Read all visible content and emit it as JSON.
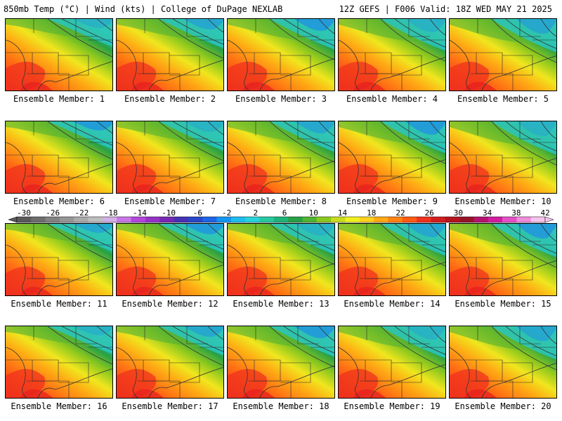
{
  "header": {
    "left_title": "850mb Temp (°C) | Wind (kts) | College of DuPage NEXLAB",
    "right_title": "12Z GEFS | F006 Valid: 18Z WED MAY 21 2025"
  },
  "members": [
    {
      "label": "Ensemble Member: 1"
    },
    {
      "label": "Ensemble Member: 2"
    },
    {
      "label": "Ensemble Member: 3"
    },
    {
      "label": "Ensemble Member: 4"
    },
    {
      "label": "Ensemble Member: 5"
    },
    {
      "label": "Ensemble Member: 6"
    },
    {
      "label": "Ensemble Member: 7"
    },
    {
      "label": "Ensemble Member: 8"
    },
    {
      "label": "Ensemble Member: 9"
    },
    {
      "label": "Ensemble Member: 10"
    },
    {
      "label": "Ensemble Member: 11"
    },
    {
      "label": "Ensemble Member: 12"
    },
    {
      "label": "Ensemble Member: 13"
    },
    {
      "label": "Ensemble Member: 14"
    },
    {
      "label": "Ensemble Member: 15"
    },
    {
      "label": "Ensemble Member: 16"
    },
    {
      "label": "Ensemble Member: 17"
    },
    {
      "label": "Ensemble Member: 18"
    },
    {
      "label": "Ensemble Member: 19"
    },
    {
      "label": "Ensemble Member: 20"
    }
  ],
  "colorbar": {
    "tick_labels": [
      "-30",
      "-26",
      "-22",
      "-18",
      "-14",
      "-10",
      "-6",
      "-2",
      "2",
      "6",
      "10",
      "14",
      "18",
      "22",
      "26",
      "30",
      "34",
      "38",
      "42"
    ],
    "colors": [
      "#5a5a5a",
      "#6e6e6e",
      "#828282",
      "#969696",
      "#aaaaaa",
      "#bebebe",
      "#d2aee6",
      "#c878e6",
      "#b446dc",
      "#9632c8",
      "#7828b4",
      "#4632b4",
      "#2846c8",
      "#1e64e6",
      "#1496f0",
      "#1ebef0",
      "#28d2dc",
      "#28c8a0",
      "#1eb478",
      "#28a046",
      "#50b432",
      "#8cc81e",
      "#c8dc1e",
      "#f0f01e",
      "#ffd21e",
      "#ffaa14",
      "#ff8214",
      "#ff5a14",
      "#f0321e",
      "#d21e1e",
      "#b4141e",
      "#961428",
      "#b4146e",
      "#d21ea0",
      "#e650c8",
      "#f08cdc",
      "#f5c3eb"
    ]
  }
}
